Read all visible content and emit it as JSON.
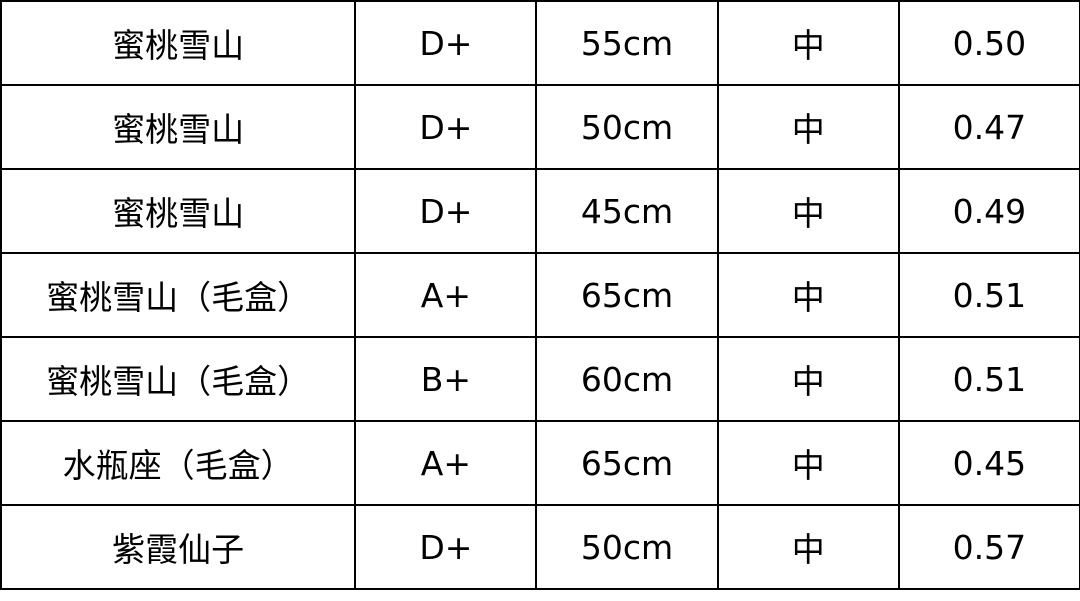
{
  "table": {
    "rows": [
      [
        "蜜桃雪山",
        "D+",
        "55cm",
        "中",
        "0.50"
      ],
      [
        "蜜桃雪山",
        "D+",
        "50cm",
        "中",
        "0.47"
      ],
      [
        "蜜桃雪山",
        "D+",
        "45cm",
        "中",
        "0.49"
      ],
      [
        "蜜桃雪山（毛盒）",
        "A+",
        "65cm",
        "中",
        "0.51"
      ],
      [
        "蜜桃雪山（毛盒）",
        "B+",
        "60cm",
        "中",
        "0.51"
      ],
      [
        "水瓶座（毛盒）",
        "A+",
        "65cm",
        "中",
        "0.45"
      ],
      [
        "紫霞仙子",
        "D+",
        "50cm",
        "中",
        "0.57"
      ]
    ]
  }
}
